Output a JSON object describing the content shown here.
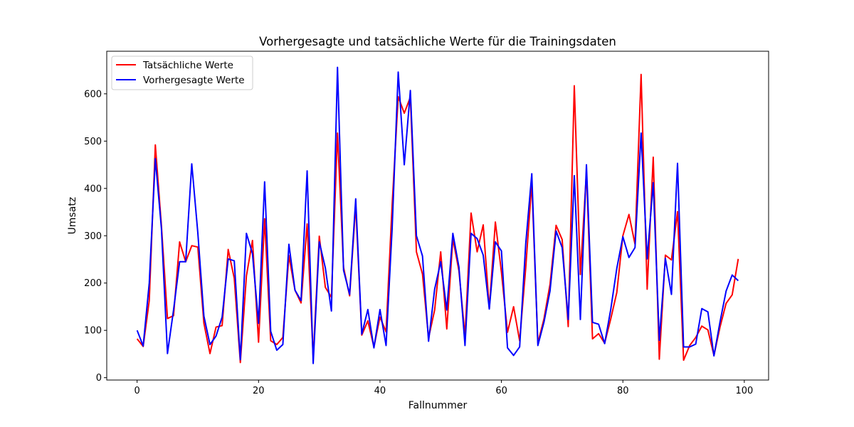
{
  "chart_data": {
    "type": "line",
    "title": "Vorhergesagte und tatsächliche Werte für die Trainingsdaten",
    "xlabel": "Fallnummer",
    "ylabel": "Umsatz",
    "xlim": [
      -5,
      104
    ],
    "ylim": [
      -5,
      690
    ],
    "xticks": [
      0,
      20,
      40,
      60,
      80,
      100
    ],
    "yticks": [
      0,
      100,
      200,
      300,
      400,
      500,
      600
    ],
    "grid": false,
    "legend_position": "top-left",
    "series": [
      {
        "name": "Tatsächliche Werte",
        "color": "#ff0000",
        "values": [
          82,
          66,
          163,
          492,
          322,
          125,
          131,
          287,
          245,
          279,
          276,
          115,
          51,
          107,
          110,
          271,
          210,
          32,
          215,
          290,
          75,
          336,
          78,
          70,
          85,
          258,
          185,
          158,
          325,
          43,
          299,
          191,
          170,
          517,
          233,
          173,
          364,
          90,
          120,
          65,
          128,
          97,
          365,
          594,
          559,
          593,
          266,
          219,
          84,
          143,
          266,
          103,
          294,
          226,
          88,
          348,
          266,
          323,
          146,
          329,
          223,
          96,
          150,
          78,
          232,
          412,
          73,
          124,
          197,
          322,
          292,
          108,
          617,
          218,
          435,
          82,
          93,
          73,
          124,
          180,
          300,
          345,
          282,
          641,
          187,
          466,
          39,
          259,
          249,
          351,
          37,
          68,
          85,
          109,
          101,
          47,
          107,
          157,
          175,
          251
        ]
      },
      {
        "name": "Vorhergesagte Werte",
        "color": "#0000ff",
        "values": [
          100,
          67,
          200,
          463,
          316,
          51,
          143,
          245,
          245,
          452,
          306,
          130,
          70,
          88,
          128,
          251,
          247,
          38,
          305,
          262,
          115,
          414,
          98,
          58,
          70,
          282,
          185,
          163,
          437,
          30,
          287,
          232,
          141,
          656,
          227,
          176,
          378,
          92,
          144,
          63,
          144,
          68,
          315,
          646,
          450,
          607,
          300,
          257,
          77,
          187,
          245,
          143,
          305,
          234,
          68,
          305,
          294,
          259,
          145,
          287,
          268,
          63,
          47,
          65,
          283,
          431,
          68,
          117,
          183,
          310,
          275,
          123,
          427,
          123,
          450,
          117,
          113,
          72,
          144,
          231,
          298,
          254,
          275,
          517,
          251,
          412,
          79,
          252,
          176,
          453,
          65,
          65,
          71,
          146,
          139,
          46,
          118,
          183,
          217,
          205
        ]
      }
    ]
  }
}
